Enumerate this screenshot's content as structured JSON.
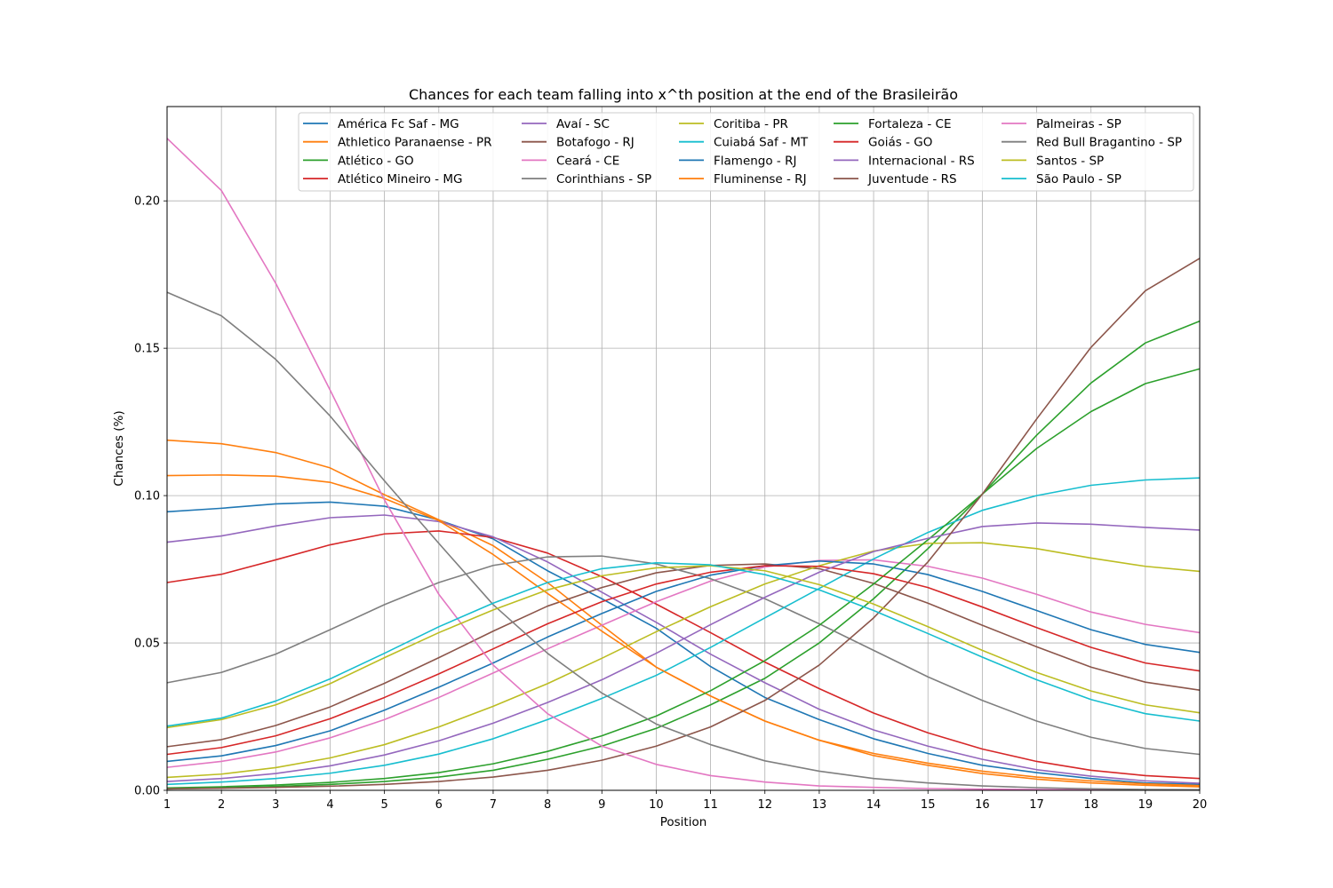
{
  "chart_data": {
    "type": "line",
    "title": "Chances for each team falling into x^th position at the end of the Brasileirão",
    "xlabel": "Position",
    "ylabel": "Chances (%)",
    "xlim": [
      1,
      20
    ],
    "ylim": [
      0,
      0.232
    ],
    "x": [
      1,
      2,
      3,
      4,
      5,
      6,
      7,
      8,
      9,
      10,
      11,
      12,
      13,
      14,
      15,
      16,
      17,
      18,
      19,
      20
    ],
    "xticks": [
      "1",
      "2",
      "3",
      "4",
      "5",
      "6",
      "7",
      "8",
      "9",
      "10",
      "11",
      "12",
      "13",
      "14",
      "15",
      "16",
      "17",
      "18",
      "19",
      "20"
    ],
    "yticks": [
      0,
      0.05,
      0.1,
      0.15,
      0.2
    ],
    "ytick_labels": [
      "0.00",
      "0.05",
      "0.10",
      "0.15",
      "0.20"
    ],
    "grid": true,
    "legend_position": "top-right",
    "legend_columns": 5,
    "series": [
      {
        "name": "América Fc Saf - MG",
        "color": "#1f77b4",
        "values": [
          0.0945,
          0.0957,
          0.0972,
          0.0978,
          0.0964,
          0.0917,
          0.0853,
          0.0745,
          0.065,
          0.055,
          0.042,
          0.0315,
          0.024,
          0.0175,
          0.0125,
          0.0085,
          0.006,
          0.004,
          0.0025,
          0.002
        ]
      },
      {
        "name": "Athletico Paranaense - PR",
        "color": "#ff7f0e",
        "values": [
          0.1188,
          0.1176,
          0.1146,
          0.1094,
          0.1003,
          0.0918,
          0.083,
          0.0705,
          0.056,
          0.0418,
          0.032,
          0.0235,
          0.017,
          0.0118,
          0.0085,
          0.0057,
          0.0038,
          0.0025,
          0.0017,
          0.0012
        ]
      },
      {
        "name": "Atlético - GO",
        "color": "#2ca02c",
        "values": [
          0.0005,
          0.0008,
          0.0013,
          0.002,
          0.003,
          0.0045,
          0.0068,
          0.0105,
          0.015,
          0.021,
          0.029,
          0.038,
          0.05,
          0.065,
          0.082,
          0.1005,
          0.116,
          0.1285,
          0.138,
          0.143
        ]
      },
      {
        "name": "Atlético Mineiro - MG",
        "color": "#d62728",
        "values": [
          0.0705,
          0.0733,
          0.0782,
          0.0833,
          0.087,
          0.088,
          0.0858,
          0.0805,
          0.0725,
          0.0632,
          0.0535,
          0.0435,
          0.0345,
          0.0262,
          0.0195,
          0.014,
          0.0098,
          0.0068,
          0.005,
          0.004
        ]
      },
      {
        "name": "Avaí - SC",
        "color": "#9467bd",
        "values": [
          0.0842,
          0.0863,
          0.0897,
          0.0925,
          0.0934,
          0.0912,
          0.086,
          0.0775,
          0.0672,
          0.057,
          0.0462,
          0.0365,
          0.0275,
          0.0205,
          0.015,
          0.0105,
          0.007,
          0.0048,
          0.0032,
          0.0024
        ]
      },
      {
        "name": "Botafogo - RJ",
        "color": "#8c564b",
        "values": [
          0.0148,
          0.0172,
          0.022,
          0.0283,
          0.0363,
          0.045,
          0.054,
          0.0625,
          0.0688,
          0.0738,
          0.0763,
          0.0768,
          0.0752,
          0.0702,
          0.0635,
          0.056,
          0.0487,
          0.0418,
          0.0367,
          0.034
        ]
      },
      {
        "name": "Ceará - CE",
        "color": "#e377c2",
        "values": [
          0.0078,
          0.0098,
          0.013,
          0.0178,
          0.024,
          0.0315,
          0.0398,
          0.048,
          0.056,
          0.064,
          0.071,
          0.0758,
          0.078,
          0.0782,
          0.076,
          0.072,
          0.0665,
          0.0605,
          0.0563,
          0.0535
        ]
      },
      {
        "name": "Corinthians - SP",
        "color": "#7f7f7f",
        "values": [
          0.0365,
          0.04,
          0.0462,
          0.0545,
          0.063,
          0.0705,
          0.0763,
          0.0792,
          0.0795,
          0.0768,
          0.0718,
          0.065,
          0.0565,
          0.0475,
          0.0385,
          0.0305,
          0.0235,
          0.018,
          0.0142,
          0.0122
        ]
      },
      {
        "name": "Coritiba - PR",
        "color": "#bcbd22",
        "values": [
          0.0044,
          0.0055,
          0.0077,
          0.011,
          0.0155,
          0.0215,
          0.0285,
          0.0362,
          0.0448,
          0.0538,
          0.0623,
          0.07,
          0.0762,
          0.0812,
          0.0838,
          0.084,
          0.082,
          0.0788,
          0.076,
          0.0743
        ]
      },
      {
        "name": "Cuiabá Saf - MT",
        "color": "#17becf",
        "values": [
          0.002,
          0.0028,
          0.004,
          0.0058,
          0.0085,
          0.0123,
          0.0175,
          0.024,
          0.0312,
          0.039,
          0.0485,
          0.0585,
          0.0685,
          0.0785,
          0.0875,
          0.095,
          0.1,
          0.1035,
          0.1053,
          0.106
        ]
      },
      {
        "name": "Flamengo - RJ",
        "color": "#1f77b4",
        "values": [
          0.0098,
          0.0117,
          0.0152,
          0.0202,
          0.0272,
          0.035,
          0.0432,
          0.052,
          0.06,
          0.0675,
          0.073,
          0.0762,
          0.0778,
          0.0768,
          0.0732,
          0.0675,
          0.061,
          0.0545,
          0.0495,
          0.0468
        ]
      },
      {
        "name": "Fluminense - RJ",
        "color": "#ff7f0e",
        "values": [
          0.1068,
          0.107,
          0.1066,
          0.1045,
          0.099,
          0.0915,
          0.08,
          0.0668,
          0.054,
          0.0418,
          0.032,
          0.0235,
          0.017,
          0.0125,
          0.0092,
          0.0065,
          0.0045,
          0.0032,
          0.0022,
          0.0016
        ]
      },
      {
        "name": "Fortaleza - CE",
        "color": "#2ca02c",
        "values": [
          0.0008,
          0.0012,
          0.0018,
          0.0027,
          0.004,
          0.006,
          0.009,
          0.0132,
          0.0185,
          0.0252,
          0.0338,
          0.044,
          0.056,
          0.07,
          0.085,
          0.1005,
          0.1205,
          0.1382,
          0.1518,
          0.1592
        ]
      },
      {
        "name": "Goiás - GO",
        "color": "#d62728",
        "values": [
          0.0122,
          0.0145,
          0.0185,
          0.0243,
          0.0315,
          0.0395,
          0.048,
          0.0565,
          0.064,
          0.07,
          0.074,
          0.0762,
          0.076,
          0.0735,
          0.0688,
          0.0622,
          0.0552,
          0.0485,
          0.0432,
          0.0405
        ]
      },
      {
        "name": "Internacional - RS",
        "color": "#9467bd",
        "values": [
          0.003,
          0.004,
          0.0057,
          0.0083,
          0.012,
          0.0168,
          0.0228,
          0.0298,
          0.0375,
          0.0465,
          0.0562,
          0.0655,
          0.074,
          0.081,
          0.0855,
          0.0895,
          0.0907,
          0.0903,
          0.0892,
          0.0883
        ]
      },
      {
        "name": "Juventude - RS",
        "color": "#8c564b",
        "values": [
          0.0005,
          0.0007,
          0.001,
          0.0014,
          0.002,
          0.003,
          0.0045,
          0.0068,
          0.0102,
          0.015,
          0.0215,
          0.0305,
          0.0425,
          0.0585,
          0.0775,
          0.1005,
          0.126,
          0.1503,
          0.1695,
          0.1805
        ]
      },
      {
        "name": "Palmeiras - SP",
        "color": "#e377c2",
        "values": [
          0.2212,
          0.2035,
          0.172,
          0.1358,
          0.0985,
          0.0665,
          0.0425,
          0.026,
          0.015,
          0.0088,
          0.005,
          0.0028,
          0.0015,
          0.001,
          0.0006,
          0.0004,
          0.0003,
          0.0002,
          0.0001,
          0.0001
        ]
      },
      {
        "name": "Red Bull Bragantino - SP",
        "color": "#7f7f7f",
        "values": [
          0.169,
          0.161,
          0.1462,
          0.127,
          0.105,
          0.0838,
          0.063,
          0.0465,
          0.033,
          0.0225,
          0.0155,
          0.01,
          0.0065,
          0.004,
          0.0025,
          0.0015,
          0.0009,
          0.0005,
          0.0003,
          0.0002
        ]
      },
      {
        "name": "Santos - SP",
        "color": "#bcbd22",
        "values": [
          0.0213,
          0.024,
          0.029,
          0.0362,
          0.045,
          0.0535,
          0.0612,
          0.068,
          0.0728,
          0.0755,
          0.0762,
          0.0745,
          0.0698,
          0.0632,
          0.0555,
          0.0475,
          0.04,
          0.0337,
          0.029,
          0.0263
        ]
      },
      {
        "name": "São Paulo - SP",
        "color": "#17becf",
        "values": [
          0.0218,
          0.0245,
          0.0303,
          0.0378,
          0.0465,
          0.0555,
          0.0635,
          0.0705,
          0.0752,
          0.0772,
          0.0765,
          0.0732,
          0.068,
          0.061,
          0.0532,
          0.0452,
          0.0375,
          0.0308,
          0.026,
          0.0235
        ]
      }
    ]
  }
}
